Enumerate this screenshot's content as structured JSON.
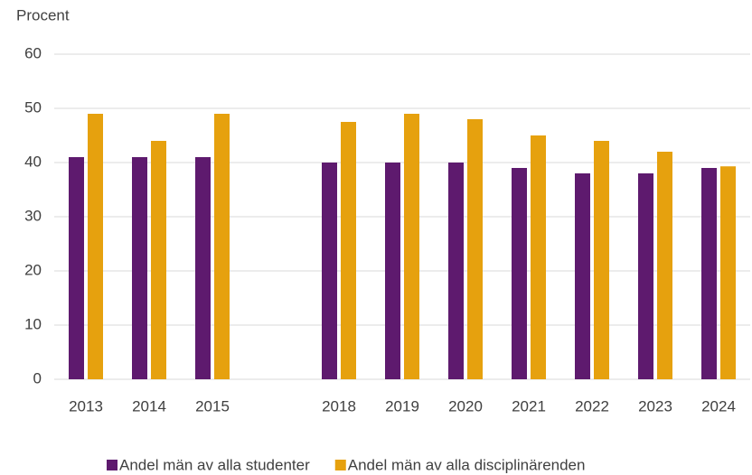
{
  "chart_data": {
    "type": "bar",
    "y_axis_label": "Procent",
    "categories": [
      "2013",
      "2014",
      "2015",
      null,
      "2018",
      "2019",
      "2020",
      "2021",
      "2022",
      "2023",
      "2024"
    ],
    "series": [
      {
        "name": "Andel män av alla studenter",
        "color": "#5e1a6e",
        "values": [
          41,
          41,
          41,
          null,
          40,
          40,
          40,
          39,
          38,
          38,
          39
        ]
      },
      {
        "name": "Andel män av alla disciplinärenden",
        "color": "#e6a10e",
        "values": [
          49,
          44,
          49,
          null,
          47.5,
          49,
          48,
          45,
          44,
          42,
          39.3
        ]
      }
    ],
    "ylim": [
      0,
      60
    ],
    "yticks": [
      0,
      10,
      20,
      30,
      40,
      50,
      60
    ],
    "grid": true,
    "legend": "bottom"
  }
}
